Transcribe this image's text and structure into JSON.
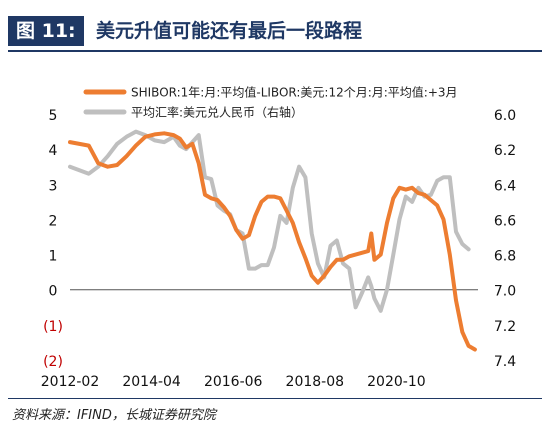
{
  "figure": {
    "tag": "图 11:",
    "title": "美元升值可能还有最后一段路程",
    "source": "资料来源：IFIND，长城证券研究院"
  },
  "colors": {
    "navy": "#1f3864",
    "orange": "#ed7d31",
    "gray": "#bfbfbf",
    "negative_label": "#c00000"
  },
  "chart_data": {
    "type": "line",
    "title": "",
    "x_tick_labels": [
      "2012-02",
      "2014-04",
      "2016-06",
      "2018-08",
      "2020-10"
    ],
    "x_tick_dates": [
      "2012-02",
      "2014-04",
      "2016-06",
      "2018-08",
      "2020-10"
    ],
    "x_range": [
      "2012-02",
      "2022-12"
    ],
    "left_axis": {
      "range": [
        -2,
        5
      ],
      "ticks": [
        5,
        4,
        3,
        2,
        1,
        0,
        -1,
        -2
      ],
      "tick_labels": [
        "5",
        "4",
        "3",
        "2",
        "1",
        "0",
        "(1)",
        "(2)"
      ]
    },
    "right_axis": {
      "range": [
        6.0,
        7.4
      ],
      "inverted": true,
      "ticks": [
        6.0,
        6.2,
        6.4,
        6.6,
        6.8,
        7.0,
        7.2,
        7.4
      ],
      "tick_labels": [
        "6.0",
        "6.2",
        "6.4",
        "6.6",
        "6.8",
        "7.0",
        "7.2",
        "7.4"
      ]
    },
    "legend_position": "top",
    "grid": false,
    "series": [
      {
        "name": "SHIBOR:1年:月:平均值-LIBOR:美元:12个月:月:平均值:+3月",
        "axis": "left",
        "color": "#ed7d31",
        "points": [
          [
            "2012-02",
            4.2
          ],
          [
            "2012-05",
            4.15
          ],
          [
            "2012-08",
            4.1
          ],
          [
            "2012-11",
            3.6
          ],
          [
            "2013-02",
            3.5
          ],
          [
            "2013-05",
            3.55
          ],
          [
            "2013-08",
            3.8
          ],
          [
            "2013-11",
            4.1
          ],
          [
            "2014-02",
            4.35
          ],
          [
            "2014-05",
            4.42
          ],
          [
            "2014-08",
            4.45
          ],
          [
            "2014-11",
            4.4
          ],
          [
            "2015-01",
            4.3
          ],
          [
            "2015-03",
            4.05
          ],
          [
            "2015-05",
            4.15
          ],
          [
            "2015-07",
            3.6
          ],
          [
            "2015-09",
            2.7
          ],
          [
            "2015-11",
            2.6
          ],
          [
            "2016-01",
            2.55
          ],
          [
            "2016-03",
            2.35
          ],
          [
            "2016-05",
            2.1
          ],
          [
            "2016-07",
            1.7
          ],
          [
            "2016-09",
            1.45
          ],
          [
            "2016-11",
            1.55
          ],
          [
            "2017-01",
            2.1
          ],
          [
            "2017-03",
            2.5
          ],
          [
            "2017-05",
            2.65
          ],
          [
            "2017-07",
            2.65
          ],
          [
            "2017-09",
            2.6
          ],
          [
            "2017-11",
            2.25
          ],
          [
            "2018-01",
            1.9
          ],
          [
            "2018-03",
            1.35
          ],
          [
            "2018-05",
            0.9
          ],
          [
            "2018-07",
            0.4
          ],
          [
            "2018-09",
            0.2
          ],
          [
            "2018-11",
            0.4
          ],
          [
            "2019-01",
            0.65
          ],
          [
            "2019-03",
            0.85
          ],
          [
            "2019-05",
            0.85
          ],
          [
            "2019-07",
            0.95
          ],
          [
            "2019-09",
            1.0
          ],
          [
            "2019-11",
            1.05
          ],
          [
            "2020-01",
            1.1
          ],
          [
            "2020-02",
            1.6
          ],
          [
            "2020-03",
            0.85
          ],
          [
            "2020-05",
            1.0
          ],
          [
            "2020-07",
            1.9
          ],
          [
            "2020-09",
            2.6
          ],
          [
            "2020-11",
            2.9
          ],
          [
            "2021-01",
            2.85
          ],
          [
            "2021-03",
            2.9
          ],
          [
            "2021-05",
            2.75
          ],
          [
            "2021-07",
            2.7
          ],
          [
            "2021-09",
            2.55
          ],
          [
            "2021-11",
            2.4
          ],
          [
            "2022-01",
            2.0
          ],
          [
            "2022-03",
            1.0
          ],
          [
            "2022-05",
            -0.3
          ],
          [
            "2022-07",
            -1.2
          ],
          [
            "2022-09",
            -1.6
          ],
          [
            "2022-11",
            -1.7
          ]
        ]
      },
      {
        "name": "平均汇率:美元兑人民币（右轴）",
        "axis": "right",
        "color": "#bfbfbf",
        "points": [
          [
            "2012-02",
            6.3
          ],
          [
            "2012-05",
            6.32
          ],
          [
            "2012-08",
            6.34
          ],
          [
            "2012-11",
            6.3
          ],
          [
            "2013-02",
            6.24
          ],
          [
            "2013-05",
            6.17
          ],
          [
            "2013-08",
            6.13
          ],
          [
            "2013-11",
            6.1
          ],
          [
            "2014-02",
            6.12
          ],
          [
            "2014-05",
            6.15
          ],
          [
            "2014-08",
            6.16
          ],
          [
            "2014-11",
            6.13
          ],
          [
            "2015-01",
            6.18
          ],
          [
            "2015-03",
            6.2
          ],
          [
            "2015-05",
            6.16
          ],
          [
            "2015-07",
            6.12
          ],
          [
            "2015-09",
            6.36
          ],
          [
            "2015-11",
            6.37
          ],
          [
            "2016-01",
            6.52
          ],
          [
            "2016-03",
            6.55
          ],
          [
            "2016-05",
            6.57
          ],
          [
            "2016-07",
            6.66
          ],
          [
            "2016-09",
            6.68
          ],
          [
            "2016-11",
            6.88
          ],
          [
            "2017-01",
            6.88
          ],
          [
            "2017-03",
            6.86
          ],
          [
            "2017-05",
            6.86
          ],
          [
            "2017-07",
            6.76
          ],
          [
            "2017-09",
            6.58
          ],
          [
            "2017-11",
            6.62
          ],
          [
            "2018-01",
            6.42
          ],
          [
            "2018-03",
            6.3
          ],
          [
            "2018-05",
            6.36
          ],
          [
            "2018-07",
            6.68
          ],
          [
            "2018-09",
            6.85
          ],
          [
            "2018-11",
            6.93
          ],
          [
            "2019-01",
            6.75
          ],
          [
            "2019-03",
            6.72
          ],
          [
            "2019-05",
            6.85
          ],
          [
            "2019-07",
            6.88
          ],
          [
            "2019-09",
            7.1
          ],
          [
            "2019-11",
            7.02
          ],
          [
            "2020-01",
            6.93
          ],
          [
            "2020-02",
            6.98
          ],
          [
            "2020-03",
            7.05
          ],
          [
            "2020-05",
            7.12
          ],
          [
            "2020-07",
            7.0
          ],
          [
            "2020-09",
            6.8
          ],
          [
            "2020-11",
            6.6
          ],
          [
            "2021-01",
            6.47
          ],
          [
            "2021-03",
            6.5
          ],
          [
            "2021-05",
            6.42
          ],
          [
            "2021-07",
            6.47
          ],
          [
            "2021-09",
            6.46
          ],
          [
            "2021-11",
            6.38
          ],
          [
            "2022-01",
            6.36
          ],
          [
            "2022-03",
            6.36
          ],
          [
            "2022-05",
            6.67
          ],
          [
            "2022-07",
            6.74
          ],
          [
            "2022-09",
            6.77
          ]
        ]
      }
    ]
  }
}
